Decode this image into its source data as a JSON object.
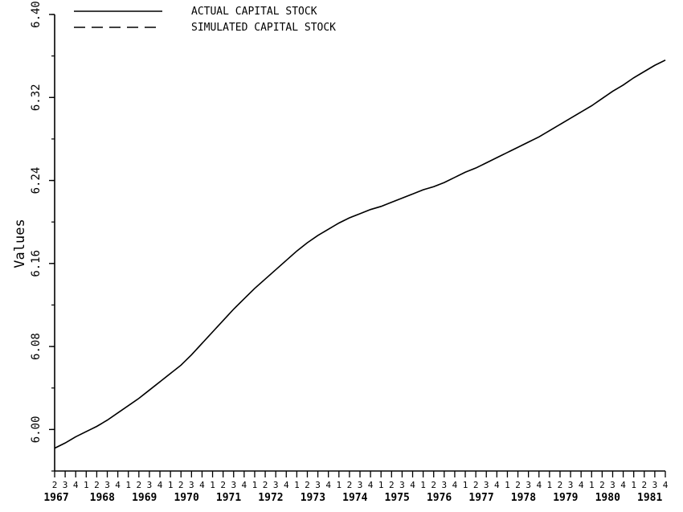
{
  "chart_data": {
    "type": "line",
    "title": "",
    "xlabel": "",
    "ylabel": "Values",
    "ylim": [
      5.96,
      6.4
    ],
    "yticks": [
      6.0,
      6.08,
      6.16,
      6.24,
      6.32,
      6.4
    ],
    "ytick_labels": [
      "6.00",
      "6.08",
      "6.16",
      "6.24",
      "6.32",
      "6.40"
    ],
    "x_start_quarter": "1967Q2",
    "x_end_quarter": "1981Q4",
    "quarter_labels": [
      "2",
      "3",
      "4",
      "1",
      "2",
      "3",
      "4",
      "1",
      "2",
      "3",
      "4",
      "1",
      "2",
      "3",
      "4",
      "1",
      "2",
      "3",
      "4",
      "1",
      "2",
      "3",
      "4",
      "1",
      "2",
      "3",
      "4",
      "1",
      "2",
      "3",
      "4",
      "1",
      "2",
      "3",
      "4",
      "1",
      "2",
      "3",
      "4",
      "1",
      "2",
      "3",
      "4",
      "1",
      "2",
      "3",
      "4",
      "1",
      "2",
      "3",
      "4",
      "1",
      "2",
      "3",
      "4",
      "1",
      "2",
      "3",
      "4"
    ],
    "year_labels": [
      "1967",
      "1968",
      "1969",
      "1970",
      "1971",
      "1972",
      "1973",
      "1974",
      "1975",
      "1976",
      "1977",
      "1978",
      "1979",
      "1980",
      "1981"
    ],
    "year_first_quarter_index": [
      0,
      3,
      7,
      11,
      15,
      19,
      23,
      27,
      31,
      35,
      39,
      43,
      47,
      51,
      55
    ],
    "legend_position": "top-left",
    "grid": false,
    "series": [
      {
        "name": "ACTUAL CAPITAL STOCK",
        "style": "solid",
        "values": [
          5.982,
          5.987,
          5.993,
          5.998,
          6.003,
          6.009,
          6.016,
          6.023,
          6.03,
          6.038,
          6.046,
          6.054,
          6.062,
          6.072,
          6.083,
          6.094,
          6.105,
          6.116,
          6.126,
          6.136,
          6.145,
          6.154,
          6.163,
          6.172,
          6.18,
          6.187,
          6.193,
          6.199,
          6.204,
          6.208,
          6.212,
          6.215,
          6.219,
          6.223,
          6.227,
          6.231,
          6.234,
          6.238,
          6.243,
          6.248,
          6.252,
          6.257,
          6.262,
          6.267,
          6.272,
          6.277,
          6.282,
          6.288,
          6.294,
          6.3,
          6.306,
          6.312,
          6.319,
          6.326,
          6.332,
          6.339,
          6.345,
          6.351,
          6.356
        ]
      },
      {
        "name": "SIMULATED CAPITAL STOCK",
        "style": "dashed",
        "values": [
          5.982,
          5.987,
          5.993,
          5.998,
          6.003,
          6.009,
          6.016,
          6.023,
          6.03,
          6.038,
          6.046,
          6.054,
          6.062,
          6.072,
          6.083,
          6.094,
          6.105,
          6.116,
          6.126,
          6.136,
          6.145,
          6.154,
          6.163,
          6.172,
          6.18,
          6.187,
          6.193,
          6.199,
          6.204,
          6.208,
          6.212,
          6.215,
          6.219,
          6.223,
          6.227,
          6.231,
          6.234,
          6.238,
          6.243,
          6.248,
          6.252,
          6.257,
          6.262,
          6.267,
          6.272,
          6.277,
          6.282,
          6.288,
          6.294,
          6.3,
          6.306,
          6.312,
          6.319,
          6.326,
          6.332,
          6.339,
          6.345,
          6.351,
          6.356
        ]
      }
    ]
  }
}
